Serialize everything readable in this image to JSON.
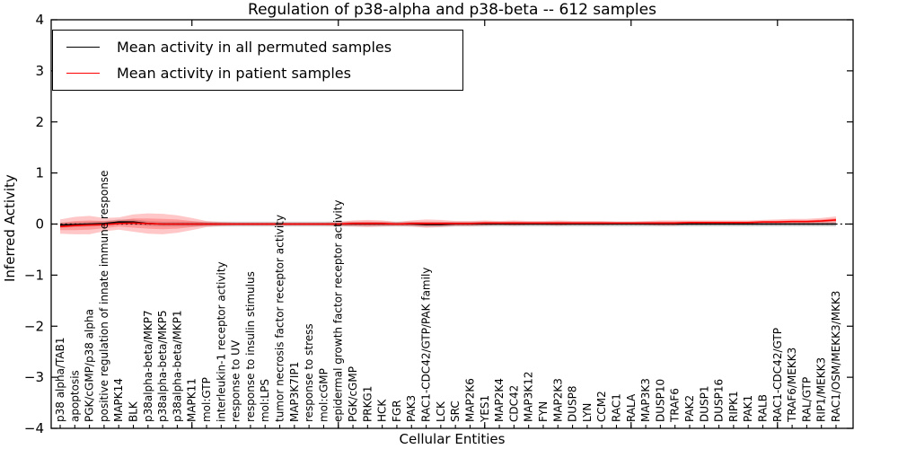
{
  "chart_data": {
    "type": "line",
    "title": "Regulation of p38-alpha and p38-beta -- 612 samples",
    "xlabel": "Cellular Entities",
    "ylabel": "Inferred Activity",
    "ylim": [
      -4,
      4
    ],
    "yticks": [
      4,
      3,
      2,
      1,
      0,
      -1,
      -2,
      -3,
      -4
    ],
    "x_major_tick_indices": [
      9,
      19,
      29,
      39,
      49
    ],
    "grid": false,
    "legend_position": "upper left",
    "zero_line": {
      "y": 0,
      "style": "dotted",
      "color": "#000000"
    },
    "categories": [
      "p38 alpha/TAB1",
      "apoptosis",
      "PGK/cGMP/p38 alpha",
      "positive regulation of innate immune response",
      "MAPK14",
      "BLK",
      "p38alpha-beta/MKP7",
      "p38alpha-beta/MKP5",
      "p38alpha-beta/MKP1",
      "MAPK11",
      "mol:GTP",
      "interleukin-1 receptor activity",
      "response to UV",
      "response to insulin stimulus",
      "mol:LPS",
      "tumor necrosis factor receptor activity",
      "MAP3K7IP1",
      "response to stress",
      "mol:cGMP",
      "epidermal growth factor receptor activity",
      "PGK/cGMP",
      "PRKG1",
      "HCK",
      "FGR",
      "PAK3",
      "RAC1-CDC42/GTP/PAK family",
      "LCK",
      "SRC",
      "MAP2K6",
      "YES1",
      "MAP2K4",
      "CDC42",
      "MAP3K12",
      "FYN",
      "MAP2K3",
      "DUSP8",
      "LYN",
      "CCM2",
      "RAC1",
      "RALA",
      "MAP3K3",
      "DUSP10",
      "TRAF6",
      "PAK2",
      "DUSP1",
      "DUSP16",
      "RIPK1",
      "PAK1",
      "RALB",
      "RAC1-CDC42/GTP",
      "TRAF6/MEKK3",
      "RAL/GTP",
      "RIP1/MEKK3",
      "RAC1/OSM/MEKK3/MKK3"
    ],
    "series": [
      {
        "name": "Mean activity in all permuted samples",
        "color": "#000000",
        "values": [
          -0.02,
          -0.01,
          0.0,
          0.01,
          0.04,
          0.04,
          0.01,
          0.0,
          0.0,
          0.0,
          0.0,
          0.0,
          0.0,
          0.0,
          0.0,
          0.0,
          0.0,
          0.0,
          0.0,
          0.0,
          0.0,
          0.0,
          0.0,
          0.0,
          0.0,
          -0.01,
          -0.01,
          0.0,
          0.0,
          0.0,
          0.0,
          0.0,
          0.0,
          0.0,
          0.0,
          0.0,
          0.0,
          0.0,
          0.0,
          0.0,
          0.0,
          0.0,
          0.0,
          0.0,
          0.0,
          0.0,
          0.0,
          0.0,
          0.0,
          0.0,
          0.0,
          0.0,
          0.0,
          0.0
        ]
      },
      {
        "name": "Mean activity in patient samples",
        "color": "#ff0000",
        "values": [
          -0.05,
          -0.03,
          -0.02,
          -0.01,
          0.01,
          0.02,
          0.01,
          0.0,
          0.0,
          0.0,
          0.0,
          0.0,
          0.0,
          0.0,
          0.0,
          0.0,
          0.0,
          0.0,
          0.0,
          0.0,
          0.01,
          0.01,
          0.01,
          0.0,
          0.01,
          0.01,
          0.01,
          0.01,
          0.01,
          0.02,
          0.02,
          0.02,
          0.02,
          0.02,
          0.02,
          0.02,
          0.02,
          0.02,
          0.02,
          0.02,
          0.02,
          0.02,
          0.02,
          0.03,
          0.03,
          0.03,
          0.03,
          0.03,
          0.04,
          0.04,
          0.05,
          0.05,
          0.06,
          0.08
        ]
      }
    ],
    "bands": [
      {
        "name": "permuted-samples-std",
        "center_series": 0,
        "color": "#999999",
        "opacity": 0.38,
        "half_width_uniform": 0.05
      },
      {
        "name": "patient-samples-std-outer",
        "center_series": 1,
        "color": "#ff0000",
        "opacity": 0.22,
        "half_widths": [
          0.14,
          0.17,
          0.18,
          0.13,
          0.12,
          0.17,
          0.2,
          0.2,
          0.17,
          0.12,
          0.06,
          0.04,
          0.03,
          0.03,
          0.03,
          0.03,
          0.03,
          0.03,
          0.03,
          0.04,
          0.06,
          0.07,
          0.06,
          0.04,
          0.06,
          0.08,
          0.07,
          0.05,
          0.05,
          0.05,
          0.04,
          0.05,
          0.04,
          0.04,
          0.05,
          0.04,
          0.04,
          0.04,
          0.03,
          0.03,
          0.04,
          0.05,
          0.05,
          0.04,
          0.04,
          0.04,
          0.04,
          0.04,
          0.04,
          0.05,
          0.05,
          0.05,
          0.06,
          0.07
        ]
      },
      {
        "name": "patient-samples-std-inner",
        "center_series": 1,
        "color": "#ff0000",
        "opacity": 0.22,
        "half_widths": [
          0.07,
          0.09,
          0.09,
          0.07,
          0.06,
          0.09,
          0.1,
          0.1,
          0.09,
          0.06,
          0.03,
          0.02,
          0.015,
          0.015,
          0.015,
          0.015,
          0.015,
          0.015,
          0.015,
          0.02,
          0.03,
          0.035,
          0.03,
          0.02,
          0.03,
          0.04,
          0.035,
          0.025,
          0.025,
          0.025,
          0.02,
          0.025,
          0.02,
          0.02,
          0.025,
          0.02,
          0.02,
          0.02,
          0.015,
          0.015,
          0.02,
          0.025,
          0.025,
          0.02,
          0.02,
          0.02,
          0.02,
          0.02,
          0.02,
          0.025,
          0.025,
          0.025,
          0.03,
          0.035
        ]
      }
    ]
  }
}
